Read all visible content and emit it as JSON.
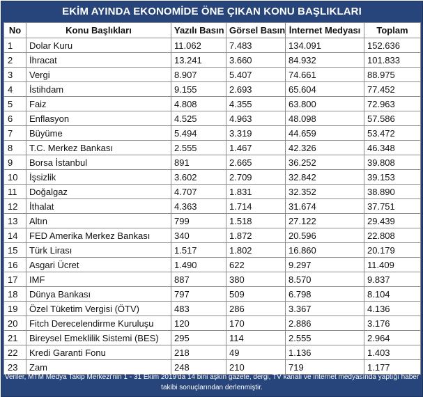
{
  "title": "EKİM AYINDA EKONOMİDE ÖNE ÇIKAN KONU BAŞLIKLARI",
  "columns": [
    "No",
    "Konu Başlıkları",
    "Yazılı Basın",
    "Görsel Basın",
    "İnternet Medyası",
    "Toplam"
  ],
  "rows": [
    [
      "1",
      "Dolar Kuru",
      "11.062",
      "7.483",
      "134.091",
      "152.636"
    ],
    [
      "2",
      "İhracat",
      "13.241",
      "3.660",
      "84.932",
      "101.833"
    ],
    [
      "3",
      "Vergi",
      "8.907",
      "5.407",
      "74.661",
      "88.975"
    ],
    [
      "4",
      "İstihdam",
      "9.155",
      "2.693",
      "65.604",
      "77.452"
    ],
    [
      "5",
      "Faiz",
      "4.808",
      "4.355",
      "63.800",
      "72.963"
    ],
    [
      "6",
      "Enflasyon",
      "4.525",
      "4.963",
      "48.098",
      "57.586"
    ],
    [
      "7",
      "Büyüme",
      "5.494",
      "3.319",
      "44.659",
      "53.472"
    ],
    [
      "8",
      "T.C. Merkez Bankası",
      "2.555",
      "1.467",
      "42.326",
      "46.348"
    ],
    [
      "9",
      "Borsa İstanbul",
      "891",
      "2.665",
      "36.252",
      "39.808"
    ],
    [
      "10",
      "İşsizlik",
      "3.602",
      "2.709",
      "32.842",
      "39.153"
    ],
    [
      "11",
      "Doğalgaz",
      "4.707",
      "1.831",
      "32.352",
      "38.890"
    ],
    [
      "12",
      "İthalat",
      "4.363",
      "1.714",
      "31.674",
      "37.751"
    ],
    [
      "13",
      "Altın",
      "799",
      "1.518",
      "27.122",
      "29.439"
    ],
    [
      "14",
      "FED Amerika Merkez Bankası",
      "340",
      "1.872",
      "20.596",
      "22.808"
    ],
    [
      "15",
      "Türk Lirası",
      "1.517",
      "1.802",
      "16.860",
      "20.179"
    ],
    [
      "16",
      "Asgari Ücret",
      "1.490",
      "622",
      "9.297",
      "11.409"
    ],
    [
      "17",
      "IMF",
      "887",
      "380",
      "8.570",
      "9.837"
    ],
    [
      "18",
      "Dünya Bankası",
      "797",
      "509",
      "6.798",
      "8.104"
    ],
    [
      "19",
      "Özel Tüketim Vergisi (ÖTV)",
      "483",
      "286",
      "3.367",
      "4.136"
    ],
    [
      "20",
      "Fitch Derecelendirme Kuruluşu",
      "120",
      "170",
      "2.886",
      "3.176"
    ],
    [
      "21",
      "Bireysel Emeklilik Sistemi (BES)",
      "295",
      "114",
      "2.555",
      "2.964"
    ],
    [
      "22",
      "Kredi Garanti Fonu",
      "218",
      "49",
      "1.136",
      "1.403"
    ],
    [
      "23",
      "Zam",
      "248",
      "210",
      "719",
      "1.177"
    ]
  ],
  "footer": "Veriler, MTM Medya Takip Merkezi'nin 1 - 31 Ekim 2019'da 14 bini aşkın gazete, dergi, TV kanalı ve internet medyasında yaptığı haber takibi sonuçlarından derlenmiştir.",
  "colors": {
    "frame": "#27457a",
    "grid": "#8c8c8c",
    "text": "#111111"
  }
}
